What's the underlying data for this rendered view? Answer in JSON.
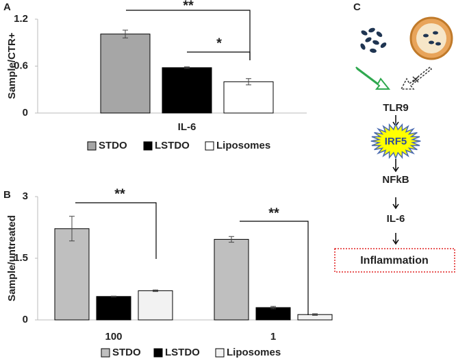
{
  "chart_data": [
    {
      "type": "bar",
      "panel_label": "A",
      "y_label": "Sample/CTR+",
      "categories": [
        "IL-6"
      ],
      "series": [
        {
          "name": "STDO",
          "color": "#a6a6a6",
          "values": [
            1.01
          ],
          "errors": [
            0.05
          ]
        },
        {
          "name": "LSTDO",
          "color": "#000000",
          "values": [
            0.58
          ],
          "errors": [
            0.01
          ]
        },
        {
          "name": "Liposomes",
          "color": "#ffffff",
          "values": [
            0.4
          ],
          "errors": [
            0.04
          ]
        }
      ],
      "ylim": [
        0,
        1.2
      ],
      "yticks": [
        0,
        0.6,
        1.2
      ],
      "grid": false,
      "annotations": [
        "**",
        "*"
      ]
    },
    {
      "type": "bar",
      "panel_label": "B",
      "y_label": "Sample/untreated",
      "categories": [
        "100",
        "1"
      ],
      "series": [
        {
          "name": "STDO",
          "color": "#bfbfbf",
          "values": [
            2.22,
            1.96
          ],
          "errors": [
            0.3,
            0.07
          ]
        },
        {
          "name": "LSTDO",
          "color": "#000000",
          "values": [
            0.57,
            0.3
          ],
          "errors": [
            0.01,
            0.03
          ]
        },
        {
          "name": "Liposomes",
          "color": "#f2f2f2",
          "values": [
            0.71,
            0.13
          ],
          "errors": [
            0.02,
            0.02
          ]
        }
      ],
      "ylim": [
        0,
        3
      ],
      "yticks": [
        0,
        1.5,
        3
      ],
      "grid": false,
      "annotations": [
        "**",
        "**"
      ]
    }
  ],
  "diagram": {
    "panel_label": "C",
    "nodes": [
      "TLR9",
      "IRF5",
      "NFkB",
      "IL-6",
      "Inflammation"
    ]
  }
}
